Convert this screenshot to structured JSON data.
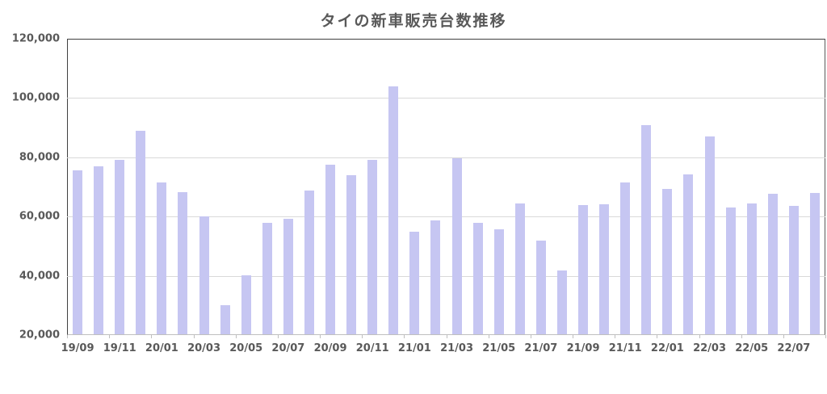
{
  "chart_data": {
    "type": "bar",
    "title": "タイの新車販売台数推移",
    "xlabel": "",
    "ylabel": "",
    "categories": [
      "19/09",
      "19/10",
      "19/11",
      "19/12",
      "20/01",
      "20/02",
      "20/03",
      "20/04",
      "20/05",
      "20/06",
      "20/07",
      "20/08",
      "20/09",
      "20/10",
      "20/11",
      "20/12",
      "21/01",
      "21/02",
      "21/03",
      "21/04",
      "21/05",
      "21/06",
      "21/07",
      "21/08",
      "21/09",
      "21/10",
      "21/11",
      "21/12",
      "22/01",
      "22/02",
      "22/03",
      "22/04",
      "22/05",
      "22/06",
      "22/07",
      "22/08"
    ],
    "values": [
      75700,
      76900,
      79000,
      89000,
      71500,
      68100,
      60000,
      30000,
      40200,
      57800,
      59200,
      68800,
      77600,
      74000,
      79000,
      104000,
      55000,
      58700,
      79800,
      58000,
      55800,
      64500,
      52000,
      41800,
      63900,
      64200,
      71400,
      90800,
      69200,
      74300,
      87000,
      63100,
      64500,
      67600,
      63700,
      68000
    ],
    "ylim": [
      20000,
      120000
    ],
    "ytick_step": 20000,
    "ytick_labels": [
      "20,000",
      "40,000",
      "60,000",
      "80,000",
      "100,000",
      "120,000"
    ],
    "xtick_labels": [
      "19/09",
      "19/11",
      "20/01",
      "20/03",
      "20/05",
      "20/07",
      "20/09",
      "20/11",
      "21/01",
      "21/03",
      "21/05",
      "21/07",
      "21/09",
      "21/11",
      "22/01",
      "22/03",
      "22/05",
      "22/07"
    ],
    "x_label_interval": 2,
    "grid": true,
    "legend_position": "none",
    "bar_color": "#c6c6f2",
    "gridline_color": "#d9d9d9",
    "axis_line_color": "#bfbfbf",
    "plot_border_color": "#404040",
    "text_color": "#595959"
  }
}
